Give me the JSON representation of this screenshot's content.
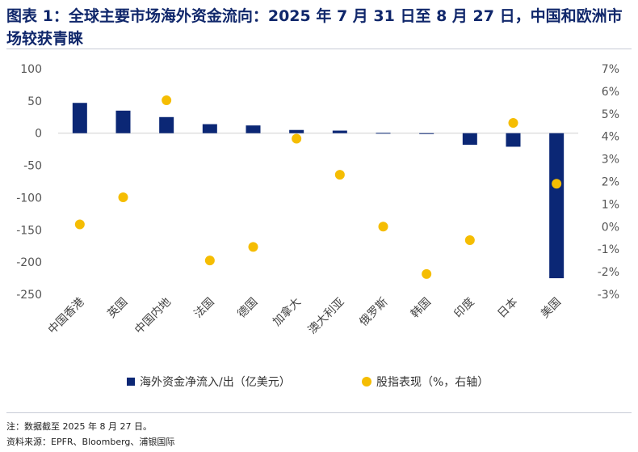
{
  "title": {
    "label": "图表 1：",
    "text": "全球主要市场海外资金流向：2025 年 7 月 31 日至 8 月 27 日，中国和欧洲市场较获青睐"
  },
  "footer": {
    "note": "注：数据截至 2025 年 8 月 27 日。",
    "source": "资料来源：EPFR、Bloomberg、浦银国际"
  },
  "colors": {
    "bar": "#0b2775",
    "dot": "#f5bd02",
    "title": "#10276b"
  },
  "chart_data": {
    "type": "bar",
    "categories": [
      "中国香港",
      "英国",
      "中国内地",
      "法国",
      "德国",
      "加拿大",
      "澳大利亚",
      "俄罗斯",
      "韩国",
      "印度",
      "日本",
      "美国"
    ],
    "series": [
      {
        "name": "海外资金净流入/出（亿美元）",
        "type": "bar",
        "axis": "left",
        "values": [
          47,
          35,
          25,
          14,
          12,
          5,
          4,
          0.5,
          -0.5,
          -18,
          -21,
          -225
        ]
      },
      {
        "name": "股指表现（%，右轴）",
        "type": "scatter",
        "axis": "right",
        "values": [
          0.1,
          1.3,
          5.6,
          -1.5,
          -0.9,
          3.9,
          2.3,
          0.0,
          -2.1,
          -0.6,
          4.6,
          1.9
        ]
      }
    ],
    "left_axis": {
      "ylim": [
        -250,
        100
      ],
      "ticks": [
        "100",
        "50",
        "0",
        "-50",
        "-100",
        "-150",
        "-200",
        "-250"
      ]
    },
    "right_axis": {
      "ylim": [
        -3,
        7
      ],
      "ticks": [
        "7%",
        "6%",
        "5%",
        "4%",
        "3%",
        "2%",
        "1%",
        "0%",
        "-1%",
        "-2%",
        "-3%"
      ]
    },
    "legend": [
      {
        "marker": "square",
        "label": "海外资金净流入/出（亿美元）"
      },
      {
        "marker": "circle",
        "label": "股指表现（%，右轴）"
      }
    ],
    "legend_position": "bottom"
  }
}
